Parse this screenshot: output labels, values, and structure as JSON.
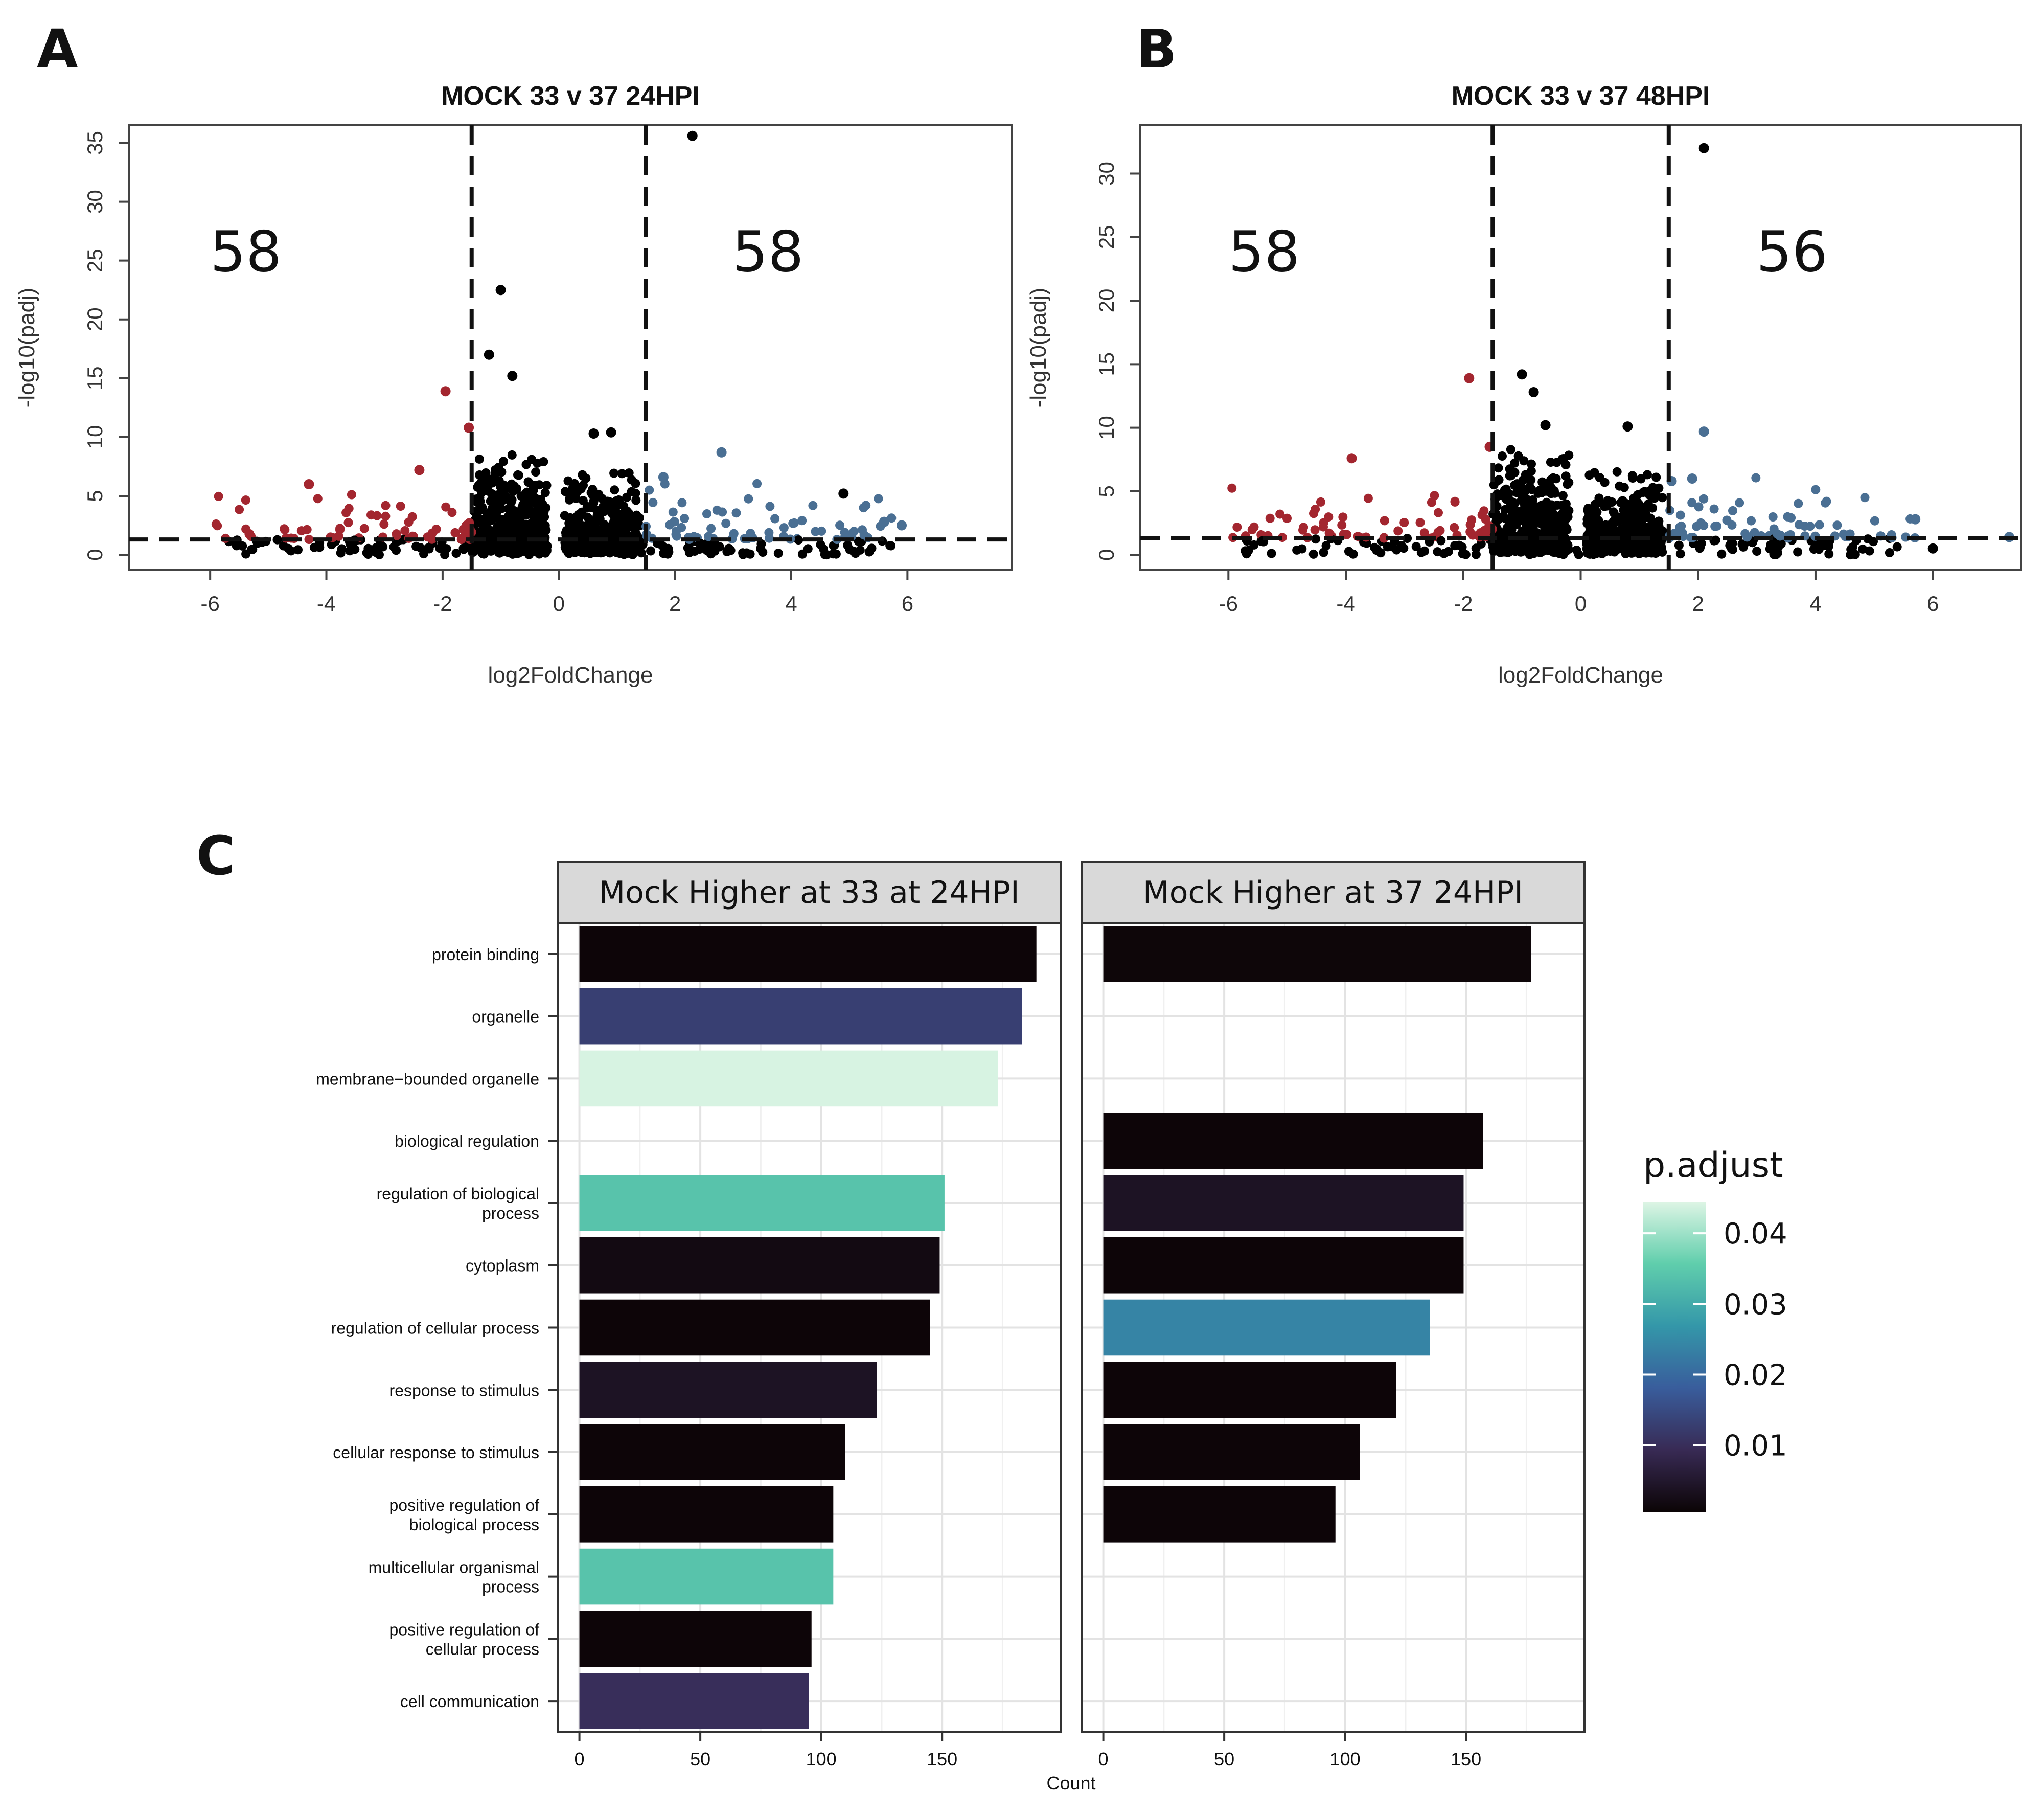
{
  "chart_data": [
    {
      "panel": "A",
      "type": "scatter",
      "title": "MOCK 33 v 37 24HPI",
      "xlabel": "log2FoldChange",
      "ylabel": "-log10(padj)",
      "xlim": [
        -7.4,
        7.8
      ],
      "ylim": [
        -1.3,
        36.5
      ],
      "xticks": [
        "-6",
        "-4",
        "-2",
        "0",
        "2",
        "4",
        "6"
      ],
      "yticks": [
        "0",
        "5",
        "10",
        "15",
        "20",
        "25",
        "30",
        "35"
      ],
      "vlines": [
        -1.5,
        1.5
      ],
      "hline": 1.3,
      "count_down": "58",
      "count_up": "58",
      "colors": {
        "down": "#a3262f",
        "up": "#4a6f93",
        "ns": "#000000"
      },
      "notable_points": [
        {
          "x": 2.3,
          "y": 35.6,
          "group": "ns"
        },
        {
          "x": -1.0,
          "y": 22.5,
          "group": "ns"
        },
        {
          "x": -1.2,
          "y": 17.0,
          "group": "ns"
        },
        {
          "x": -0.8,
          "y": 15.2,
          "group": "ns"
        },
        {
          "x": -1.95,
          "y": 13.9,
          "group": "down"
        },
        {
          "x": -1.55,
          "y": 10.8,
          "group": "down"
        },
        {
          "x": 0.6,
          "y": 10.3,
          "group": "ns"
        },
        {
          "x": 0.9,
          "y": 10.4,
          "group": "ns"
        },
        {
          "x": -2.4,
          "y": 7.2,
          "group": "down"
        },
        {
          "x": 2.8,
          "y": 8.7,
          "group": "up"
        },
        {
          "x": 1.8,
          "y": 6.6,
          "group": "up"
        },
        {
          "x": 4.9,
          "y": 5.2,
          "group": "ns"
        },
        {
          "x": -4.3,
          "y": 6.0,
          "group": "down"
        },
        {
          "x": 5.6,
          "y": 2.8,
          "group": "up"
        },
        {
          "x": 5.9,
          "y": 2.5,
          "group": "up"
        }
      ],
      "seed": 24
    },
    {
      "panel": "B",
      "type": "scatter",
      "title": "MOCK 33 v 37 48HPI",
      "xlabel": "log2FoldChange",
      "ylabel": "-log10(padj)",
      "xlim": [
        -7.5,
        7.5
      ],
      "ylim": [
        -1.2,
        33.8
      ],
      "xticks": [
        "-6",
        "-4",
        "-2",
        "0",
        "2",
        "4",
        "6"
      ],
      "yticks": [
        "0",
        "5",
        "10",
        "15",
        "20",
        "25",
        "30"
      ],
      "vlines": [
        -1.5,
        1.5
      ],
      "hline": 1.3,
      "count_down": "58",
      "count_up": "56",
      "colors": {
        "down": "#a3262f",
        "up": "#4a6f93",
        "ns": "#000000"
      },
      "notable_points": [
        {
          "x": 2.1,
          "y": 32.0,
          "group": "ns"
        },
        {
          "x": -1.0,
          "y": 14.2,
          "group": "ns"
        },
        {
          "x": -1.9,
          "y": 13.9,
          "group": "down"
        },
        {
          "x": -0.8,
          "y": 12.8,
          "group": "ns"
        },
        {
          "x": -0.6,
          "y": 10.2,
          "group": "ns"
        },
        {
          "x": 0.8,
          "y": 10.1,
          "group": "ns"
        },
        {
          "x": -1.55,
          "y": 8.5,
          "group": "down"
        },
        {
          "x": -3.9,
          "y": 7.6,
          "group": "down"
        },
        {
          "x": 2.1,
          "y": 9.7,
          "group": "up"
        },
        {
          "x": 1.9,
          "y": 6.0,
          "group": "up"
        },
        {
          "x": 1.55,
          "y": 5.8,
          "group": "up"
        },
        {
          "x": 5.7,
          "y": 2.8,
          "group": "up"
        },
        {
          "x": 6.0,
          "y": 0.5,
          "group": "ns"
        },
        {
          "x": 7.3,
          "y": 1.4,
          "group": "up"
        }
      ],
      "seed": 48
    },
    {
      "panel": "C",
      "type": "bar",
      "orientation": "horizontal",
      "xlabel": "Count",
      "xlim": [
        -9,
        199
      ],
      "xticks": [
        0,
        50,
        100,
        150
      ],
      "categories": [
        [
          "protein binding"
        ],
        [
          "organelle"
        ],
        [
          "membrane−bounded organelle"
        ],
        [
          "biological regulation"
        ],
        [
          "regulation of biological",
          "process"
        ],
        [
          "cytoplasm"
        ],
        [
          "regulation of cellular process"
        ],
        [
          "response to stimulus"
        ],
        [
          "cellular response to stimulus"
        ],
        [
          "positive regulation of",
          "biological process"
        ],
        [
          "multicellular organismal",
          "process"
        ],
        [
          "positive regulation of",
          "cellular process"
        ],
        [
          "cell communication"
        ]
      ],
      "facets": [
        {
          "name": "Mock Higher at 33 at 24HPI",
          "bars": [
            {
              "count": 189,
              "p_adjust": 0.0008
            },
            {
              "count": 183,
              "p_adjust": 0.013
            },
            {
              "count": 173,
              "p_adjust": 0.044
            },
            null,
            {
              "count": 151,
              "p_adjust": 0.034
            },
            {
              "count": 149,
              "p_adjust": 0.002
            },
            {
              "count": 145,
              "p_adjust": 0.0008
            },
            {
              "count": 123,
              "p_adjust": 0.004
            },
            {
              "count": 110,
              "p_adjust": 0.0008
            },
            {
              "count": 105,
              "p_adjust": 0.0008
            },
            {
              "count": 105,
              "p_adjust": 0.034
            },
            {
              "count": 96,
              "p_adjust": 0.0008
            },
            {
              "count": 95,
              "p_adjust": 0.01
            }
          ]
        },
        {
          "name": "Mock Higher at 37 24HPI",
          "bars": [
            {
              "count": 177,
              "p_adjust": 0.001
            },
            null,
            null,
            {
              "count": 157,
              "p_adjust": 0.0008
            },
            {
              "count": 149,
              "p_adjust": 0.004
            },
            {
              "count": 149,
              "p_adjust": 0.0008
            },
            {
              "count": 135,
              "p_adjust": 0.024
            },
            {
              "count": 121,
              "p_adjust": 0.0008
            },
            {
              "count": 106,
              "p_adjust": 0.0008
            },
            {
              "count": 96,
              "p_adjust": 0.0008
            },
            null,
            null,
            null
          ]
        }
      ],
      "legend": {
        "title": "p.adjust",
        "breaks": [
          "0.04",
          "0.03",
          "0.02",
          "0.01"
        ],
        "break_values": [
          0.04,
          0.03,
          0.02,
          0.01
        ],
        "range": [
          0.0005,
          0.0445
        ],
        "colors": [
          "#0b0405",
          "#382a54",
          "#395d9c",
          "#3497a9",
          "#60ceac",
          "#def5e5"
        ]
      }
    }
  ],
  "labels": {
    "panel_a": "A",
    "panel_b": "B",
    "panel_c": "C"
  },
  "icons": {
    "panel_a": "panel-letter",
    "panel_b": "panel-letter",
    "panel_c": "panel-letter"
  }
}
